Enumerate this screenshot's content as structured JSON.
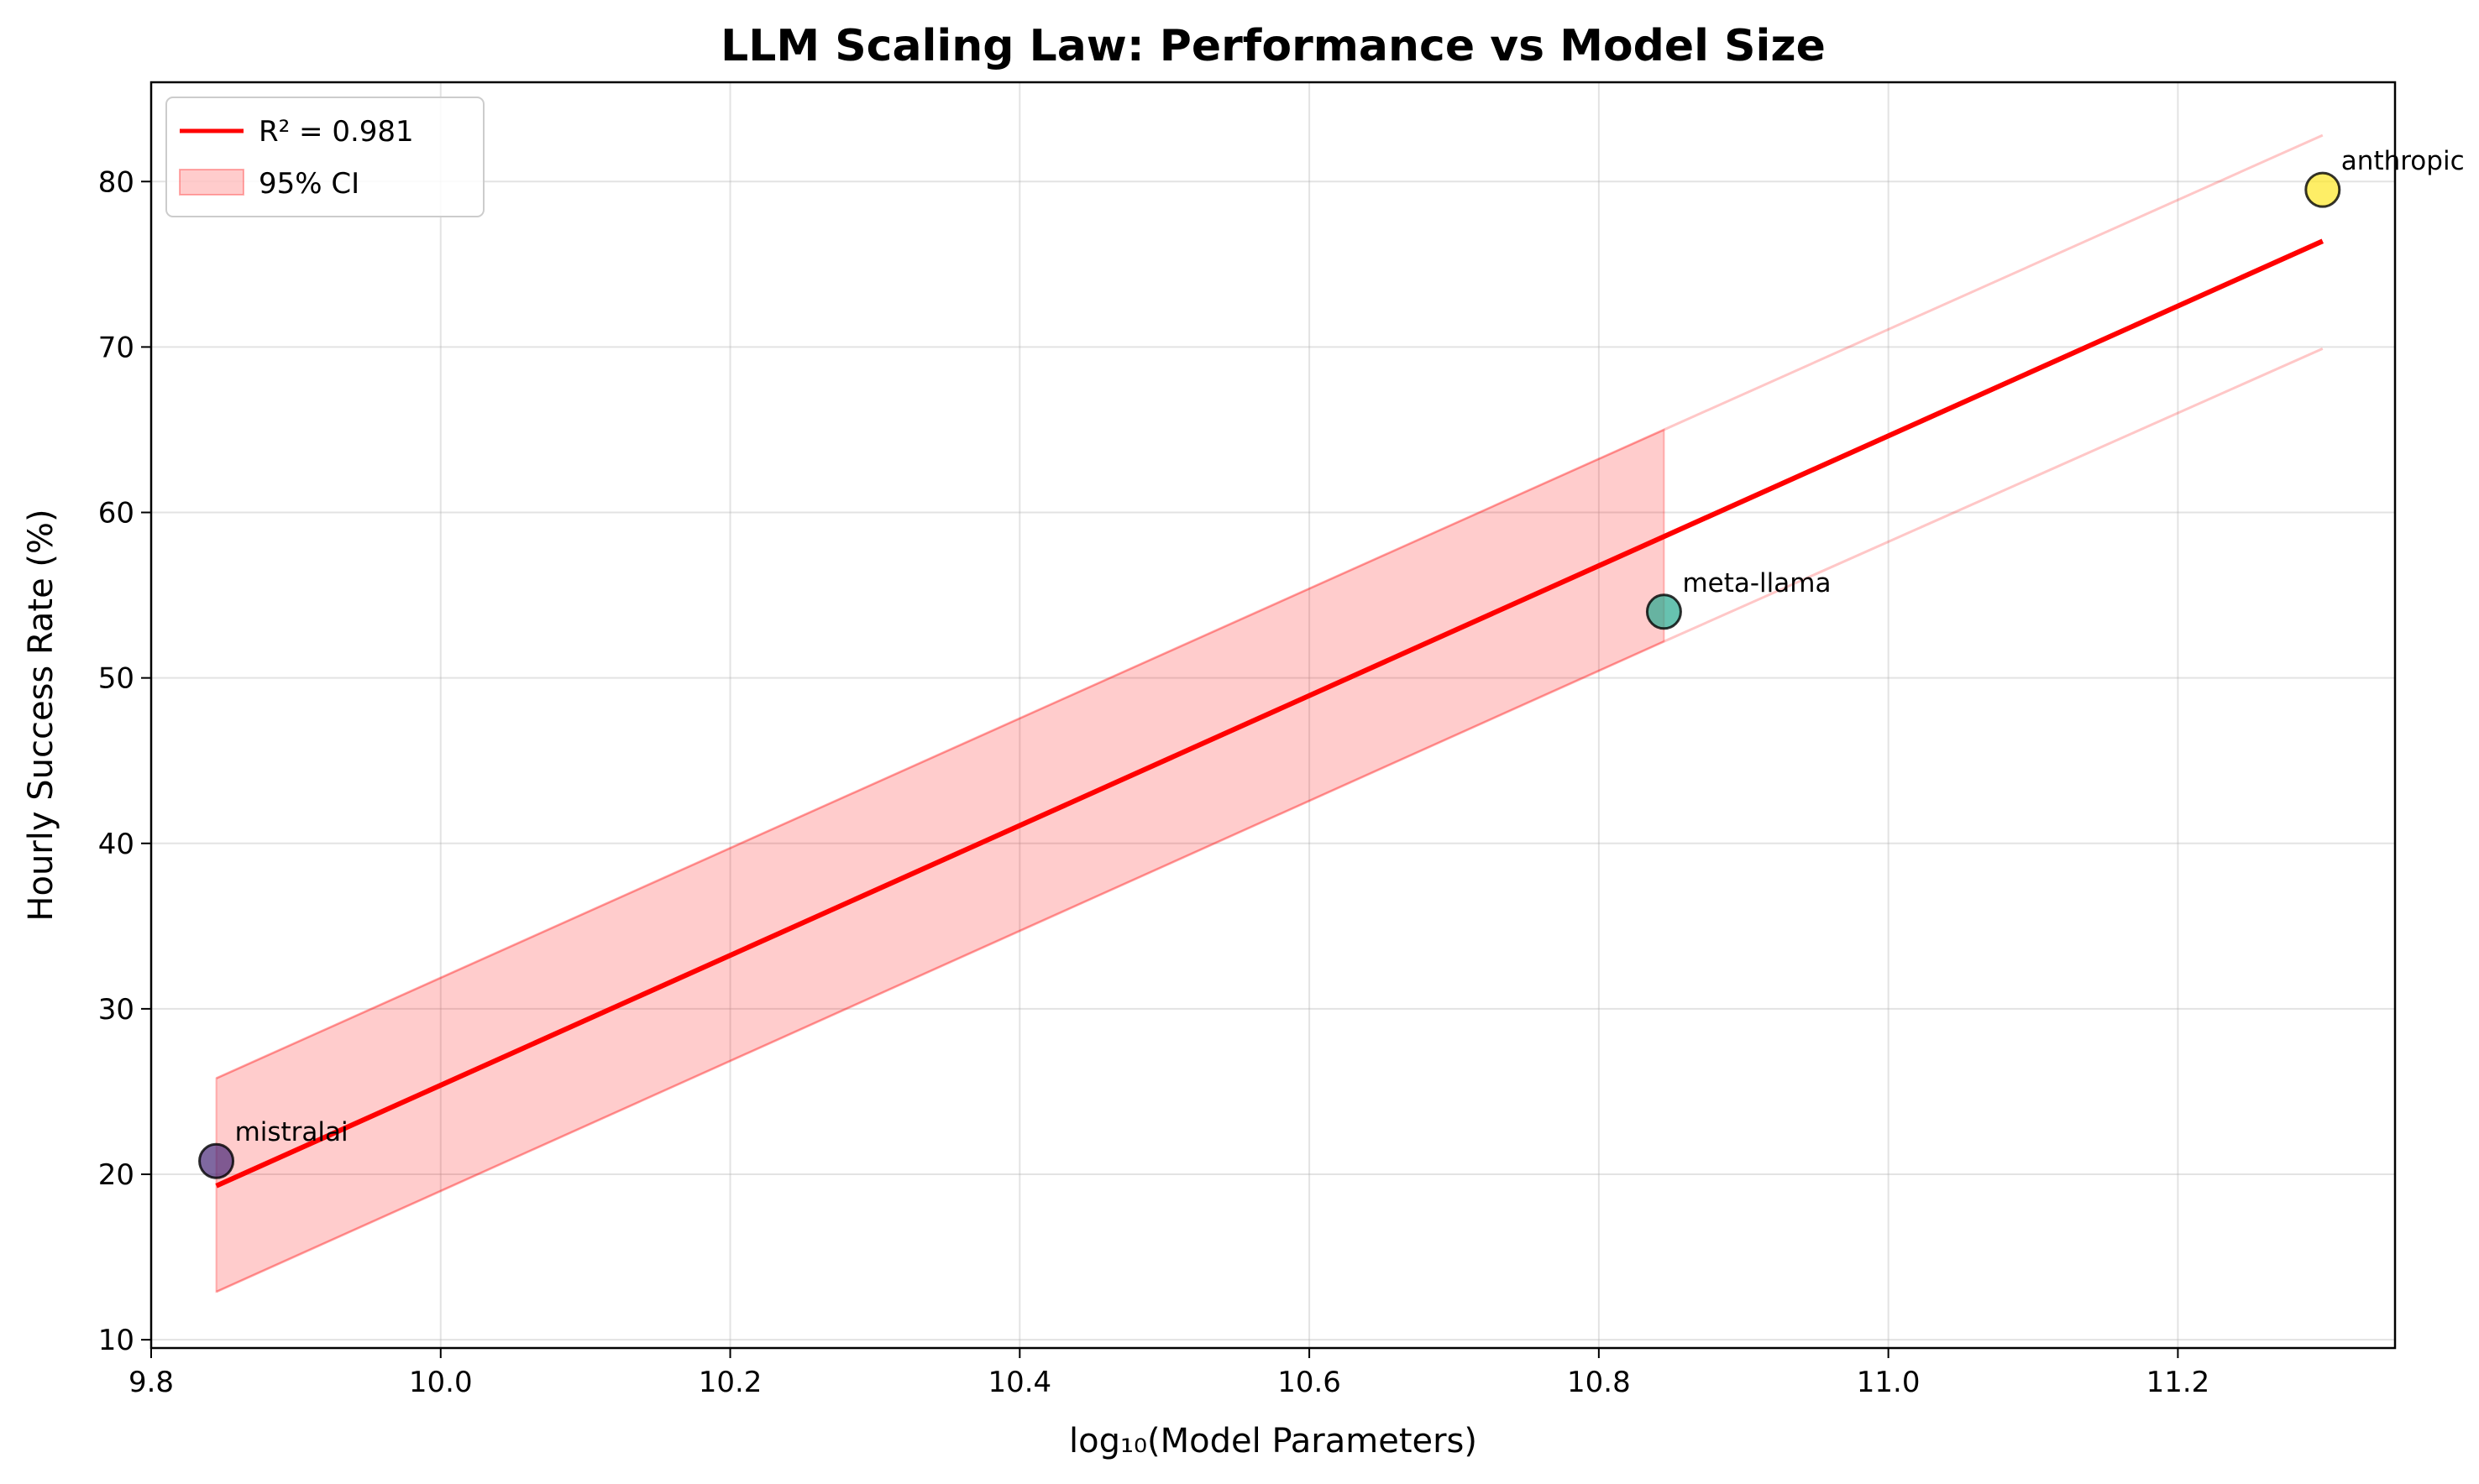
{
  "chart_data": {
    "type": "scatter",
    "title": "LLM Scaling Law: Performance vs Model Size",
    "xlabel": "log₁₀(Model Parameters)",
    "ylabel": "Hourly Success Rate (%)",
    "xlim": [
      9.8,
      11.35
    ],
    "ylim": [
      9.5,
      86
    ],
    "xticks": [
      9.8,
      10.0,
      10.2,
      10.4,
      10.6,
      10.8,
      11.0,
      11.2
    ],
    "xtick_labels": [
      "9.8",
      "10.0",
      "10.2",
      "10.4",
      "10.6",
      "10.8",
      "11.0",
      "11.2"
    ],
    "yticks": [
      10,
      20,
      30,
      40,
      50,
      60,
      70,
      80
    ],
    "ytick_labels": [
      "10",
      "20",
      "30",
      "40",
      "50",
      "60",
      "70",
      "80"
    ],
    "grid": true,
    "legend_position": "top-left",
    "points": [
      {
        "label": "mistralai",
        "x": 9.845,
        "y": 20.8,
        "color": "#482878"
      },
      {
        "label": "meta-llama",
        "x": 10.845,
        "y": 54.0,
        "color": "#26a88e"
      },
      {
        "label": "anthropic",
        "x": 11.3,
        "y": 79.5,
        "color": "#fde725"
      }
    ],
    "fit_line": {
      "legend": "R² = 0.981",
      "color": "#ff0000",
      "x": [
        9.845,
        11.3
      ],
      "y": [
        19.3,
        76.4
      ]
    },
    "confidence_band": {
      "legend": "95% CI",
      "color": "#ff0000",
      "x": [
        9.845,
        10.845,
        11.3
      ],
      "lower": [
        12.9,
        52.2,
        69.9
      ],
      "upper": [
        25.8,
        65.0,
        82.8
      ],
      "filled_until": 10.845
    }
  }
}
